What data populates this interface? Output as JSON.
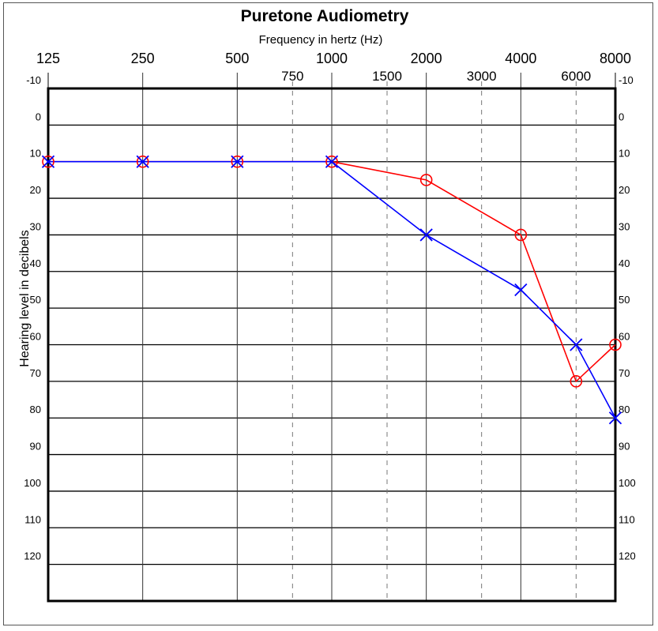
{
  "chart_data": {
    "type": "line",
    "title": "Puretone Audiometry",
    "xlabel": "Frequency in hertz (Hz)",
    "ylabel": "Hearing level in decibels",
    "x_scale": "log",
    "y_inverted": true,
    "ylim": [
      -10,
      130
    ],
    "major_frequencies": [
      125,
      250,
      500,
      1000,
      2000,
      4000,
      8000
    ],
    "major_tick_labels": [
      "125",
      "250",
      "500",
      "1000",
      "2000",
      "4000",
      "8000"
    ],
    "minor_frequencies": [
      750,
      1500,
      3000,
      6000
    ],
    "minor_tick_labels": [
      "750",
      "1500",
      "3000",
      "6000"
    ],
    "y_ticks": [
      -10,
      0,
      10,
      20,
      30,
      40,
      50,
      60,
      70,
      80,
      90,
      100,
      110,
      120
    ],
    "y_tick_labels": [
      "-10",
      "0",
      "10",
      "20",
      "30",
      "40",
      "50",
      "60",
      "70",
      "80",
      "90",
      "100",
      "110",
      "120"
    ],
    "grid": true,
    "series": [
      {
        "marker": "circle",
        "color": "#ff0000",
        "x": [
          125,
          250,
          500,
          1000,
          2000,
          4000,
          6000,
          8000
        ],
        "values": [
          10,
          10,
          10,
          10,
          15,
          30,
          70,
          60
        ]
      },
      {
        "marker": "x",
        "color": "#0000ff",
        "x": [
          125,
          250,
          500,
          1000,
          2000,
          4000,
          6000,
          8000
        ],
        "values": [
          10,
          10,
          10,
          10,
          30,
          45,
          60,
          80
        ]
      }
    ]
  }
}
